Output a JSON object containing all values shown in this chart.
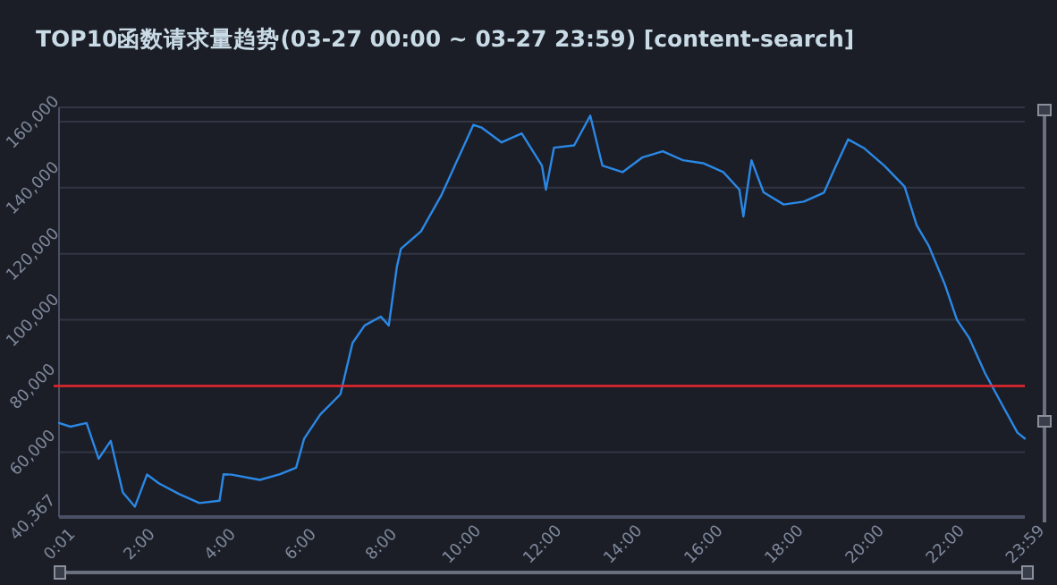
{
  "chart_data": {
    "type": "line",
    "title": "TOP10函数请求量趋势(03-27 00:00 ~ 03-27 23:59) [content-search]",
    "x": [
      0.0167,
      0.3,
      0.7,
      1.0,
      1.3,
      1.6,
      1.9,
      2.2,
      2.5,
      3.0,
      3.5,
      4.0,
      4.1,
      4.3,
      5.0,
      5.5,
      5.9,
      6.1,
      6.5,
      7.0,
      7.3,
      7.6,
      8.0,
      8.2,
      8.4,
      8.5,
      9.0,
      9.5,
      10.0,
      10.3,
      10.5,
      11.0,
      11.5,
      12.0,
      12.1,
      12.3,
      12.8,
      13.2,
      13.5,
      14.0,
      14.5,
      15.0,
      15.5,
      16.0,
      16.5,
      16.9,
      17.0,
      17.2,
      17.5,
      18.0,
      18.5,
      19.0,
      19.3,
      19.6,
      20.0,
      20.5,
      21.0,
      21.3,
      21.6,
      22.0,
      22.3,
      22.6,
      23.0,
      23.4,
      23.8,
      23.983
    ],
    "series": [
      {
        "color": "#2b88e6",
        "values": [
          68800,
          67700,
          68800,
          58000,
          63400,
          47800,
          43500,
          53200,
          50500,
          47300,
          44600,
          45300,
          53300,
          53200,
          51600,
          53300,
          55300,
          64100,
          71400,
          77500,
          93000,
          98300,
          101000,
          98300,
          116000,
          121500,
          126800,
          137600,
          151000,
          159000,
          158200,
          153700,
          156400,
          146700,
          139400,
          152100,
          152800,
          161800,
          146700,
          144700,
          149200,
          151000,
          148300,
          147400,
          144700,
          139400,
          131300,
          148300,
          138600,
          134900,
          135800,
          138500,
          146700,
          154600,
          151900,
          146600,
          140300,
          128600,
          122400,
          110700,
          100000,
          94600,
          83800,
          74800,
          65900,
          64100
        ]
      }
    ],
    "xlim": [
      0.0167,
      23.983
    ],
    "xticks": [
      {
        "value": 0.0167,
        "label": "0:01"
      },
      {
        "value": 2,
        "label": "2:00"
      },
      {
        "value": 4,
        "label": "4:00"
      },
      {
        "value": 6,
        "label": "6:00"
      },
      {
        "value": 8,
        "label": "8:00"
      },
      {
        "value": 10,
        "label": "10:00"
      },
      {
        "value": 12,
        "label": "12:00"
      },
      {
        "value": 14,
        "label": "14:00"
      },
      {
        "value": 16,
        "label": "16:00"
      },
      {
        "value": 18,
        "label": "18:00"
      },
      {
        "value": 20,
        "label": "20:00"
      },
      {
        "value": 22,
        "label": "22:00"
      },
      {
        "value": 23.983,
        "label": "23:59"
      }
    ],
    "ylim": [
      40367,
      164300
    ],
    "yticks": [
      {
        "value": 40367,
        "label": "40,367"
      },
      {
        "value": 60000,
        "label": "60,000"
      },
      {
        "value": 80000,
        "label": "80,000"
      },
      {
        "value": 100000,
        "label": "100,000"
      },
      {
        "value": 120000,
        "label": "120,000"
      },
      {
        "value": 140000,
        "label": "140,000"
      },
      {
        "value": 160000,
        "label": "160,000"
      },
      {
        "value": 164300,
        "label": null
      }
    ],
    "grid": "y",
    "marker": "none",
    "line_style": "solid",
    "ref_lines": [
      {
        "axis": "y",
        "value": 80000,
        "color": "#e8262b"
      }
    ]
  }
}
